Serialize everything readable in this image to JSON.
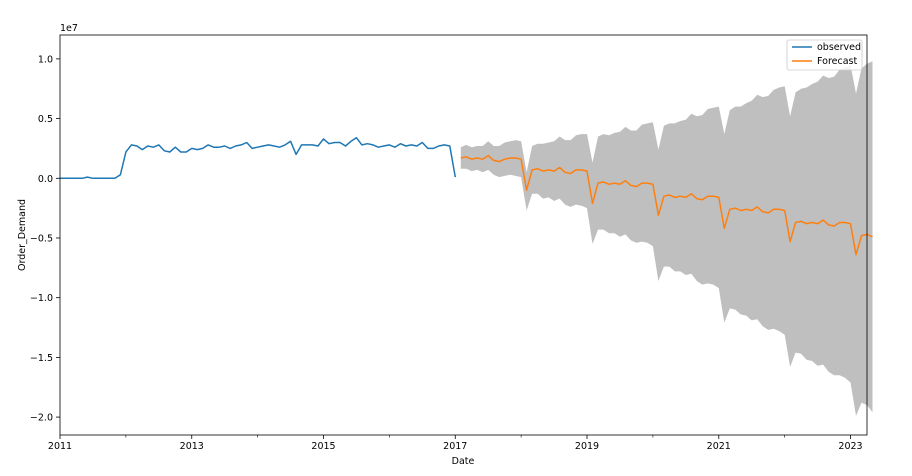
{
  "chart_data": {
    "type": "line",
    "title": "",
    "xlabel": "Date",
    "ylabel": "Order_Demand",
    "y_offset_label": "1e7",
    "x_axis": {
      "type": "date",
      "range": [
        "2011-01",
        "2023-04"
      ],
      "ticks": [
        {
          "date": "2011-01",
          "label": "2011"
        },
        {
          "date": "2013-01",
          "label": "2013"
        },
        {
          "date": "2015-01",
          "label": "2015"
        },
        {
          "date": "2017-01",
          "label": "2017"
        },
        {
          "date": "2019-01",
          "label": "2019"
        },
        {
          "date": "2021-01",
          "label": "2021"
        },
        {
          "date": "2023-01",
          "label": "2023"
        }
      ],
      "minor_ticks": [
        "2012-01",
        "2014-01",
        "2016-01",
        "2018-01",
        "2020-01",
        "2022-01"
      ]
    },
    "y_axis": {
      "range": [
        -2.15,
        1.2
      ],
      "unit_multiplier": 10000000.0,
      "ticks": [
        {
          "value": 1.0,
          "label": "1.0"
        },
        {
          "value": 0.5,
          "label": "0.5"
        },
        {
          "value": 0.0,
          "label": "0.0"
        },
        {
          "value": -0.5,
          "label": "−0.5"
        },
        {
          "value": -1.0,
          "label": "−1.0"
        },
        {
          "value": -1.5,
          "label": "−1.5"
        },
        {
          "value": -2.0,
          "label": "−2.0"
        }
      ]
    },
    "grid": false,
    "legend": {
      "placement": "top-right",
      "entries": [
        {
          "label": "observed",
          "color": "#1f77b4"
        },
        {
          "label": "Forecast",
          "color": "#ff7f0e"
        }
      ]
    },
    "series": [
      {
        "name": "observed",
        "color": "#1f77b4",
        "start": "2011-01",
        "frequency": "monthly",
        "values": [
          0.0,
          0.0,
          0.0,
          0.0,
          0.0,
          0.01,
          0.0,
          0.0,
          0.0,
          0.0,
          0.0,
          0.03,
          0.22,
          0.28,
          0.27,
          0.24,
          0.27,
          0.26,
          0.28,
          0.23,
          0.22,
          0.26,
          0.22,
          0.22,
          0.25,
          0.24,
          0.25,
          0.28,
          0.26,
          0.26,
          0.27,
          0.25,
          0.27,
          0.28,
          0.3,
          0.25,
          0.26,
          0.27,
          0.28,
          0.27,
          0.26,
          0.28,
          0.31,
          0.2,
          0.28,
          0.28,
          0.28,
          0.27,
          0.33,
          0.29,
          0.3,
          0.3,
          0.27,
          0.31,
          0.34,
          0.28,
          0.29,
          0.28,
          0.26,
          0.27,
          0.28,
          0.26,
          0.29,
          0.27,
          0.28,
          0.27,
          0.3,
          0.25,
          0.25,
          0.27,
          0.28,
          0.27,
          0.01
        ]
      },
      {
        "name": "Forecast",
        "color": "#ff7f0e",
        "start": "2017-02",
        "frequency": "monthly",
        "values": [
          0.17,
          0.18,
          0.16,
          0.17,
          0.16,
          0.19,
          0.15,
          0.14,
          0.16,
          0.17,
          0.17,
          0.16,
          -0.1,
          0.07,
          0.08,
          0.06,
          0.07,
          0.06,
          0.09,
          0.05,
          0.04,
          0.07,
          0.07,
          0.06,
          -0.21,
          -0.04,
          -0.03,
          -0.05,
          -0.04,
          -0.05,
          -0.02,
          -0.06,
          -0.07,
          -0.04,
          -0.04,
          -0.05,
          -0.31,
          -0.15,
          -0.14,
          -0.16,
          -0.15,
          -0.16,
          -0.13,
          -0.17,
          -0.18,
          -0.15,
          -0.15,
          -0.16,
          -0.42,
          -0.26,
          -0.25,
          -0.27,
          -0.26,
          -0.27,
          -0.24,
          -0.28,
          -0.29,
          -0.26,
          -0.26,
          -0.27,
          -0.53,
          -0.37,
          -0.36,
          -0.38,
          -0.37,
          -0.38,
          -0.35,
          -0.39,
          -0.4,
          -0.37,
          -0.37,
          -0.38,
          -0.64,
          -0.48,
          -0.47,
          -0.49
        ]
      }
    ],
    "confidence_band": {
      "color": "#bfbfbf",
      "start": "2017-02",
      "frequency": "monthly",
      "upper": [
        0.26,
        0.28,
        0.26,
        0.27,
        0.27,
        0.31,
        0.27,
        0.27,
        0.3,
        0.31,
        0.32,
        0.31,
        0.05,
        0.27,
        0.29,
        0.29,
        0.3,
        0.31,
        0.35,
        0.32,
        0.32,
        0.36,
        0.37,
        0.37,
        0.13,
        0.35,
        0.37,
        0.36,
        0.38,
        0.39,
        0.43,
        0.4,
        0.4,
        0.45,
        0.46,
        0.47,
        0.24,
        0.44,
        0.46,
        0.46,
        0.48,
        0.49,
        0.54,
        0.52,
        0.53,
        0.58,
        0.59,
        0.6,
        0.37,
        0.57,
        0.6,
        0.6,
        0.63,
        0.65,
        0.7,
        0.68,
        0.69,
        0.74,
        0.76,
        0.77,
        0.52,
        0.72,
        0.75,
        0.76,
        0.79,
        0.81,
        0.86,
        0.84,
        0.85,
        0.91,
        0.93,
        0.95,
        0.71,
        0.92,
        0.96,
        0.98
      ],
      "lower": [
        0.08,
        0.08,
        0.06,
        0.07,
        0.05,
        0.07,
        0.03,
        0.01,
        0.02,
        0.03,
        0.02,
        0.01,
        -0.27,
        -0.13,
        -0.13,
        -0.17,
        -0.16,
        -0.19,
        -0.17,
        -0.22,
        -0.24,
        -0.22,
        -0.23,
        -0.25,
        -0.55,
        -0.43,
        -0.43,
        -0.46,
        -0.46,
        -0.49,
        -0.47,
        -0.52,
        -0.54,
        -0.53,
        -0.54,
        -0.57,
        -0.86,
        -0.74,
        -0.74,
        -0.78,
        -0.78,
        -0.81,
        -0.8,
        -0.86,
        -0.89,
        -0.88,
        -0.89,
        -0.92,
        -1.21,
        -1.09,
        -1.1,
        -1.14,
        -1.15,
        -1.19,
        -1.18,
        -1.24,
        -1.27,
        -1.26,
        -1.28,
        -1.31,
        -1.58,
        -1.46,
        -1.47,
        -1.52,
        -1.53,
        -1.57,
        -1.56,
        -1.62,
        -1.65,
        -1.65,
        -1.67,
        -1.71,
        -1.99,
        -1.88,
        -1.9,
        -1.96
      ]
    }
  }
}
